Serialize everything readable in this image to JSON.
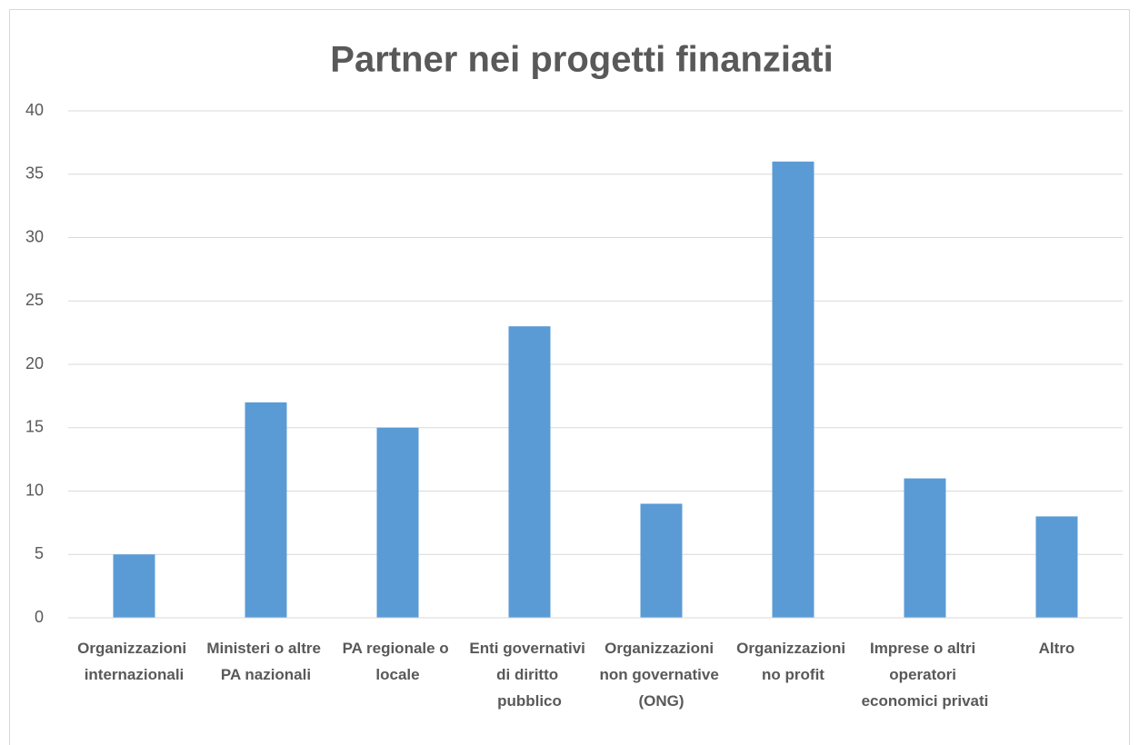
{
  "chart_data": {
    "type": "bar",
    "title": "Partner nei progetti finanziati",
    "categories": [
      "Organizzazioni internazionali",
      "Ministeri o altre PA nazionali",
      "PA regionale o locale",
      "Enti governativi di diritto pubblico",
      "Organizzazioni non governative (ONG)",
      "Organizzazioni no profit",
      "Imprese o altri operatori economici privati",
      "Altro"
    ],
    "values": [
      5,
      17,
      15,
      23,
      9,
      36,
      11,
      8
    ],
    "color": "#5b9bd5",
    "ylim": [
      0,
      40
    ],
    "yticks": [
      0,
      5,
      10,
      15,
      20,
      25,
      30,
      35,
      40
    ],
    "grid": true
  }
}
